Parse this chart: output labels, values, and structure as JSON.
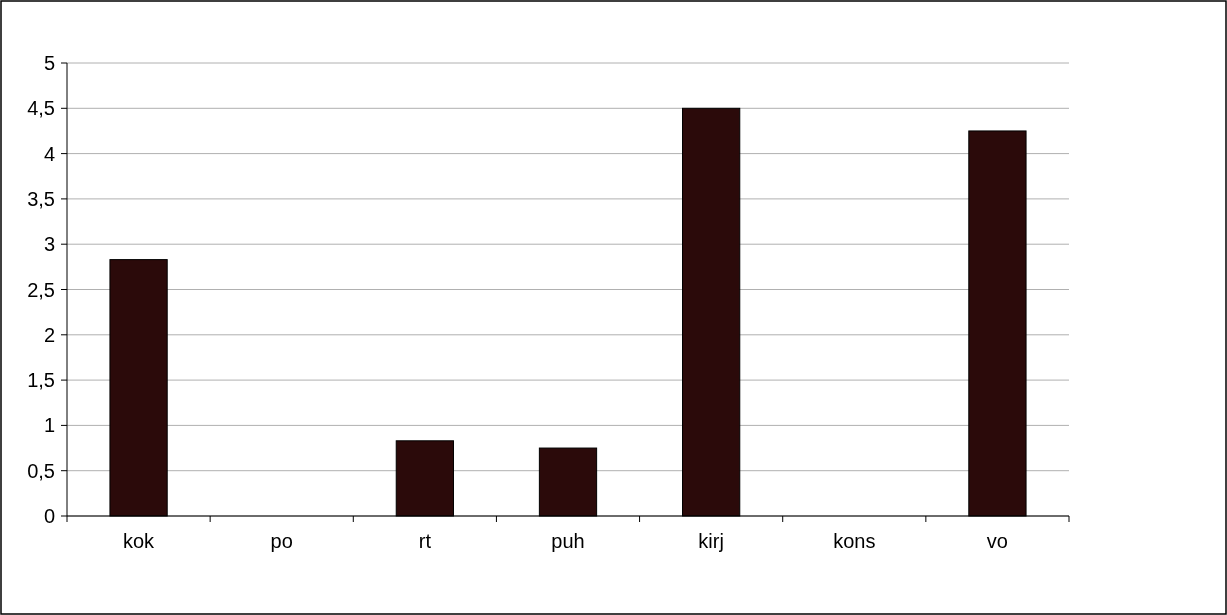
{
  "chart_data": {
    "type": "bar",
    "categories": [
      "kok",
      "po",
      "rt",
      "puh",
      "kirj",
      "kons",
      "vo"
    ],
    "values": [
      2.83,
      0,
      0.83,
      0.75,
      4.5,
      0,
      4.25
    ],
    "color": "#2b0a0a",
    "ylim": [
      0,
      5
    ],
    "yticks": [
      {
        "value": 0,
        "label": "0"
      },
      {
        "value": 0.5,
        "label": "0,5"
      },
      {
        "value": 1,
        "label": "1"
      },
      {
        "value": 1.5,
        "label": "1,5"
      },
      {
        "value": 2,
        "label": "2"
      },
      {
        "value": 2.5,
        "label": "2,5"
      },
      {
        "value": 3,
        "label": "3"
      },
      {
        "value": 3.5,
        "label": "3,5"
      },
      {
        "value": 4,
        "label": "4"
      },
      {
        "value": 4.5,
        "label": "4,5"
      },
      {
        "value": 5,
        "label": "5"
      }
    ],
    "grid": "y"
  }
}
